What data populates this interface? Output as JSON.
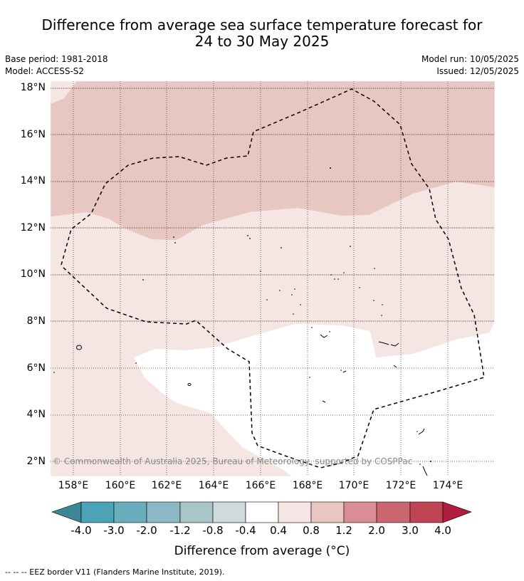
{
  "title_line1": "Difference from average sea surface temperature forecast for",
  "title_line2": "24 to 30 May 2025",
  "base_period": "Base period: 1981-2018",
  "model": "Model: ACCESS-S2",
  "model_run": "Model run: 10/05/2025",
  "issued": "Issued: 12/05/2025",
  "lat_ticks": [
    "18°N",
    "16°N",
    "14°N",
    "12°N",
    "10°N",
    "8°N",
    "6°N",
    "4°N",
    "2°N"
  ],
  "lon_ticks": [
    "158°E",
    "160°E",
    "162°E",
    "164°E",
    "166°E",
    "168°E",
    "170°E",
    "172°E",
    "174°E"
  ],
  "colorbar": {
    "labels": [
      "-4.0",
      "-3.0",
      "-2.0",
      "-1.2",
      "-0.8",
      "-0.4",
      "0.4",
      "0.8",
      "1.2",
      "2.0",
      "3.0",
      "4.0"
    ],
    "colors": [
      "#3d8795",
      "#4aa3b6",
      "#6aaebd",
      "#8cb8c4",
      "#a8c5ca",
      "#d0d9db",
      "#ffffff",
      "#f5e6e4",
      "#e8c6c1",
      "#d98e97",
      "#ca6670",
      "#bf4554",
      "#b11e3c"
    ],
    "title": "Difference from average (°C)"
  },
  "footer": "-- -- -- EEZ border V11 (Flanders Marine Institute, 2019).",
  "copyright": "© Commonwealth of Australia 2025, Bureau of Meteorology, supported by COSPPac"
}
